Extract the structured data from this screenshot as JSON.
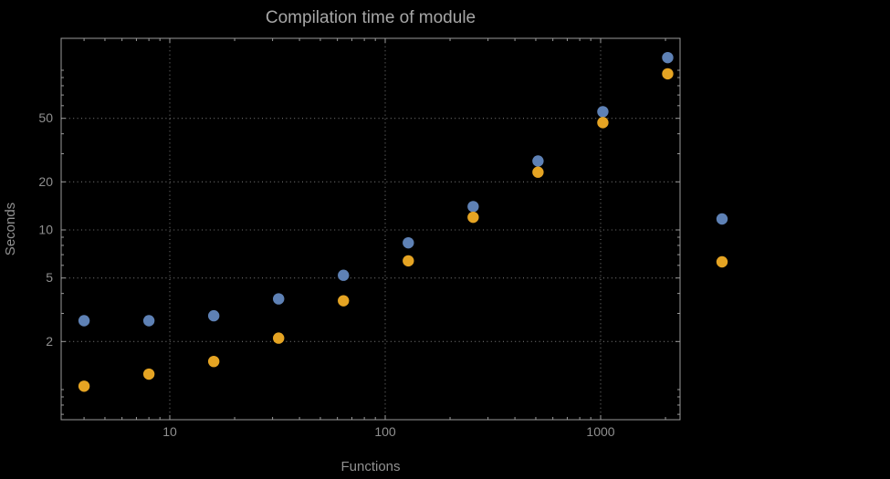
{
  "chart_data": {
    "type": "scatter",
    "title": "Compilation time of module",
    "xlabel": "Functions",
    "ylabel": "Seconds",
    "x_scale": "log",
    "y_scale": "log",
    "xlim": [
      3.1,
      2350
    ],
    "ylim": [
      0.65,
      158
    ],
    "x_ticks": [
      10,
      100,
      1000
    ],
    "x_tick_labels": [
      "10",
      "100",
      "1000"
    ],
    "y_ticks": [
      2,
      5,
      10,
      20,
      50
    ],
    "y_tick_labels": [
      "2",
      "5",
      "10",
      "20",
      "50"
    ],
    "grid": "dotted",
    "legend_position": "right-center",
    "x": [
      4,
      8,
      16,
      32,
      64,
      128,
      256,
      512,
      1024,
      2048
    ],
    "series": [
      {
        "name": "blue",
        "color": "#5E81B5",
        "values": [
          2.7,
          2.7,
          2.9,
          3.7,
          5.2,
          8.3,
          14,
          27,
          55,
          120
        ]
      },
      {
        "name": "orange",
        "color": "#E5A423",
        "values": [
          1.05,
          1.25,
          1.5,
          2.1,
          3.6,
          6.4,
          12,
          23,
          47,
          95
        ]
      }
    ],
    "legend": {
      "entries": [
        {
          "series": "blue",
          "color": "#5E81B5"
        },
        {
          "series": "orange",
          "color": "#E5A423"
        }
      ]
    },
    "colors": {
      "background": "#000000",
      "frame": "#9a9a9a",
      "grid": "#757575",
      "text": "#9a9a9a",
      "title": "#a6a6a6"
    }
  }
}
